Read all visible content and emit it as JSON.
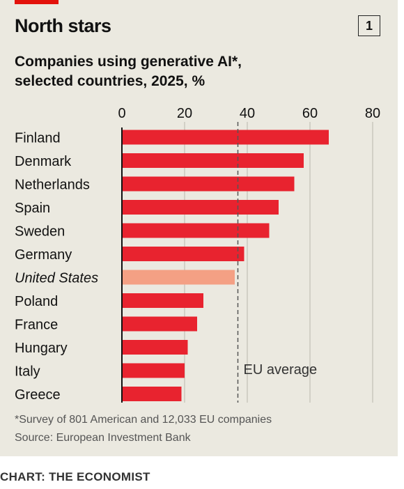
{
  "header": {
    "title": "North stars",
    "chart_number": "1",
    "subtitle_line1": "Companies using generative AI*,",
    "subtitle_line2": "selected countries, 2025, %"
  },
  "footer": {
    "footnote": "*Survey of 801 American and 12,033 EU companies",
    "source": "Source: European Investment Bank",
    "credit": "CHART: THE ECONOMIST"
  },
  "colors": {
    "bar": "#e8232f",
    "highlight": "#f4a084",
    "background": "#ebe9e0",
    "grid": "#c9c7bd",
    "reference_line": "#555555"
  },
  "chart_data": {
    "type": "bar",
    "orientation": "horizontal",
    "categories": [
      "Finland",
      "Denmark",
      "Netherlands",
      "Spain",
      "Sweden",
      "Germany",
      "United States",
      "Poland",
      "France",
      "Hungary",
      "Italy",
      "Greece"
    ],
    "values": [
      66,
      58,
      55,
      50,
      47,
      39,
      36,
      26,
      24,
      21,
      20,
      19
    ],
    "highlighted_category": "United States",
    "xlim": [
      0,
      80
    ],
    "xticks": [
      0,
      20,
      40,
      60,
      80
    ],
    "grid": true,
    "reference_line": {
      "value": 37,
      "label": "EU average"
    }
  }
}
